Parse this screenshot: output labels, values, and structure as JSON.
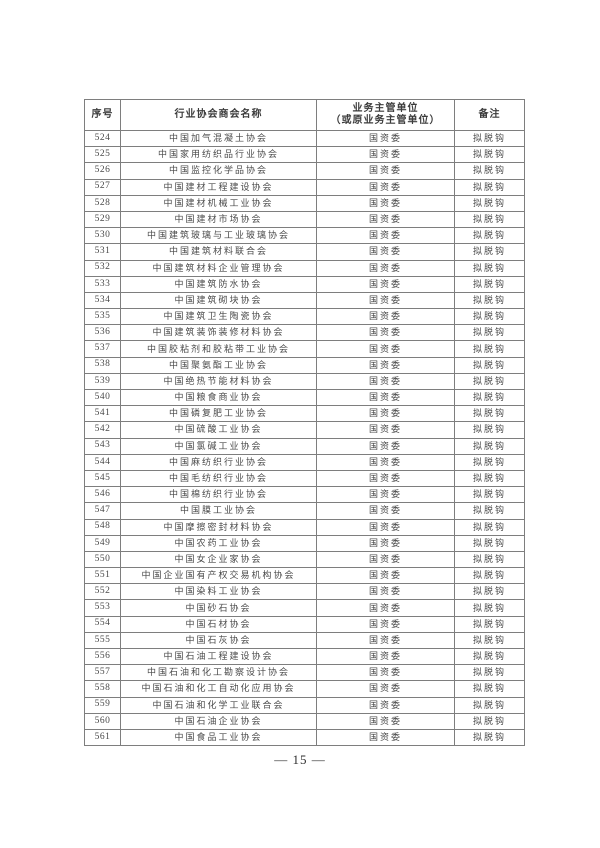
{
  "page": {
    "page_number": "— 15 —"
  },
  "table": {
    "headers": {
      "serial": "序号",
      "name": "行业协会商会名称",
      "unit_line1": "业务主管单位",
      "unit_line2": "（或原业务主管单位）",
      "remark": "备注"
    },
    "rows": [
      {
        "no": "524",
        "name": "中国加气混凝土协会",
        "unit": "国资委",
        "remark": "拟脱钩"
      },
      {
        "no": "525",
        "name": "中国家用纺织品行业协会",
        "unit": "国资委",
        "remark": "拟脱钩"
      },
      {
        "no": "526",
        "name": "中国监控化学品协会",
        "unit": "国资委",
        "remark": "拟脱钩"
      },
      {
        "no": "527",
        "name": "中国建材工程建设协会",
        "unit": "国资委",
        "remark": "拟脱钩"
      },
      {
        "no": "528",
        "name": "中国建材机械工业协会",
        "unit": "国资委",
        "remark": "拟脱钩"
      },
      {
        "no": "529",
        "name": "中国建材市场协会",
        "unit": "国资委",
        "remark": "拟脱钩"
      },
      {
        "no": "530",
        "name": "中国建筑玻璃与工业玻璃协会",
        "unit": "国资委",
        "remark": "拟脱钩"
      },
      {
        "no": "531",
        "name": "中国建筑材料联合会",
        "unit": "国资委",
        "remark": "拟脱钩"
      },
      {
        "no": "532",
        "name": "中国建筑材料企业管理协会",
        "unit": "国资委",
        "remark": "拟脱钩"
      },
      {
        "no": "533",
        "name": "中国建筑防水协会",
        "unit": "国资委",
        "remark": "拟脱钩"
      },
      {
        "no": "534",
        "name": "中国建筑砌块协会",
        "unit": "国资委",
        "remark": "拟脱钩"
      },
      {
        "no": "535",
        "name": "中国建筑卫生陶瓷协会",
        "unit": "国资委",
        "remark": "拟脱钩"
      },
      {
        "no": "536",
        "name": "中国建筑装饰装修材料协会",
        "unit": "国资委",
        "remark": "拟脱钩"
      },
      {
        "no": "537",
        "name": "中国胶粘剂和胶粘带工业协会",
        "unit": "国资委",
        "remark": "拟脱钩"
      },
      {
        "no": "538",
        "name": "中国聚氨酯工业协会",
        "unit": "国资委",
        "remark": "拟脱钩"
      },
      {
        "no": "539",
        "name": "中国绝热节能材料协会",
        "unit": "国资委",
        "remark": "拟脱钩"
      },
      {
        "no": "540",
        "name": "中国粮食商业协会",
        "unit": "国资委",
        "remark": "拟脱钩"
      },
      {
        "no": "541",
        "name": "中国磷复肥工业协会",
        "unit": "国资委",
        "remark": "拟脱钩"
      },
      {
        "no": "542",
        "name": "中国硫酸工业协会",
        "unit": "国资委",
        "remark": "拟脱钩"
      },
      {
        "no": "543",
        "name": "中国氯碱工业协会",
        "unit": "国资委",
        "remark": "拟脱钩"
      },
      {
        "no": "544",
        "name": "中国麻纺织行业协会",
        "unit": "国资委",
        "remark": "拟脱钩"
      },
      {
        "no": "545",
        "name": "中国毛纺织行业协会",
        "unit": "国资委",
        "remark": "拟脱钩"
      },
      {
        "no": "546",
        "name": "中国棉纺织行业协会",
        "unit": "国资委",
        "remark": "拟脱钩"
      },
      {
        "no": "547",
        "name": "中国膜工业协会",
        "unit": "国资委",
        "remark": "拟脱钩"
      },
      {
        "no": "548",
        "name": "中国摩擦密封材料协会",
        "unit": "国资委",
        "remark": "拟脱钩"
      },
      {
        "no": "549",
        "name": "中国农药工业协会",
        "unit": "国资委",
        "remark": "拟脱钩"
      },
      {
        "no": "550",
        "name": "中国女企业家协会",
        "unit": "国资委",
        "remark": "拟脱钩"
      },
      {
        "no": "551",
        "name": "中国企业国有产权交易机构协会",
        "unit": "国资委",
        "remark": "拟脱钩"
      },
      {
        "no": "552",
        "name": "中国染料工业协会",
        "unit": "国资委",
        "remark": "拟脱钩"
      },
      {
        "no": "553",
        "name": "中国砂石协会",
        "unit": "国资委",
        "remark": "拟脱钩"
      },
      {
        "no": "554",
        "name": "中国石材协会",
        "unit": "国资委",
        "remark": "拟脱钩"
      },
      {
        "no": "555",
        "name": "中国石灰协会",
        "unit": "国资委",
        "remark": "拟脱钩"
      },
      {
        "no": "556",
        "name": "中国石油工程建设协会",
        "unit": "国资委",
        "remark": "拟脱钩"
      },
      {
        "no": "557",
        "name": "中国石油和化工勘察设计协会",
        "unit": "国资委",
        "remark": "拟脱钩"
      },
      {
        "no": "558",
        "name": "中国石油和化工自动化应用协会",
        "unit": "国资委",
        "remark": "拟脱钩"
      },
      {
        "no": "559",
        "name": "中国石油和化学工业联合会",
        "unit": "国资委",
        "remark": "拟脱钩"
      },
      {
        "no": "560",
        "name": "中国石油企业协会",
        "unit": "国资委",
        "remark": "拟脱钩"
      },
      {
        "no": "561",
        "name": "中国食品工业协会",
        "unit": "国资委",
        "remark": "拟脱钩"
      }
    ]
  }
}
